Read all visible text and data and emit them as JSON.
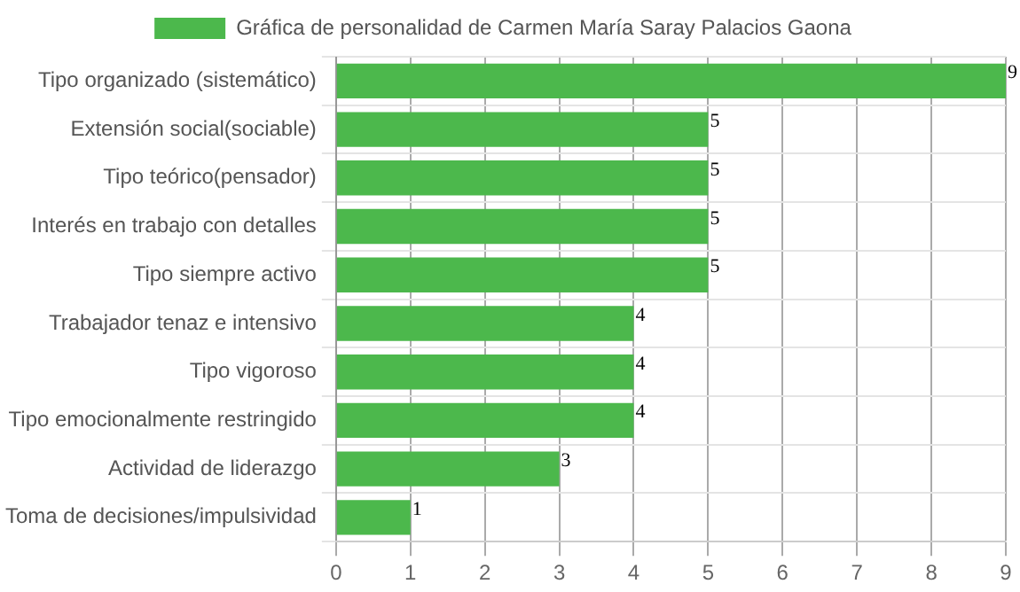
{
  "chart_data": {
    "type": "bar",
    "orientation": "horizontal",
    "categories": [
      "Tipo organizado (sistemático)",
      "Extensión social(sociable)",
      "Tipo teórico(pensador)",
      "Interés en trabajo con detalles",
      "Tipo siempre activo",
      "Trabajador tenaz e intensivo",
      "Tipo vigoroso",
      "Tipo emocionalmente restringido",
      "Actividad de liderazgo",
      "Toma de decisiones/impulsividad"
    ],
    "series": [
      {
        "name": "Gráfica de personalidad de Carmen María Saray Palacios Gaona",
        "color": "#4cb84c",
        "values": [
          9,
          5,
          5,
          5,
          5,
          4,
          4,
          4,
          3,
          1
        ]
      }
    ],
    "xlim": [
      0,
      9
    ],
    "xticks": [
      0,
      1,
      2,
      3,
      4,
      5,
      6,
      7,
      8,
      9
    ],
    "grid": true,
    "legend": "top",
    "data_labels": true
  }
}
